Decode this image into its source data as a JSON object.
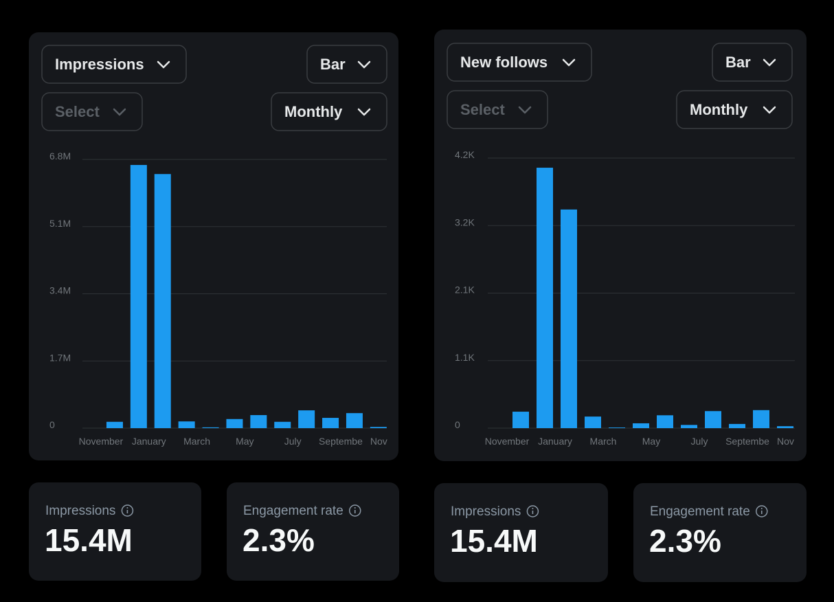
{
  "chart_data": [
    {
      "type": "bar",
      "categories": [
        "November",
        null,
        "January",
        null,
        "March",
        null,
        "May",
        null,
        "July",
        null,
        "Septembe",
        "Nov"
      ],
      "values": [
        160000,
        6660000,
        6430000,
        170000,
        20000,
        230000,
        330000,
        160000,
        450000,
        260000,
        380000,
        30000
      ],
      "color": "#1d9bf0",
      "ylim": [
        0,
        6800000
      ],
      "yticks": [
        0,
        {
          "value": 1700000,
          "label": "1.7M"
        },
        {
          "value": 3400000,
          "label": "3.4M"
        },
        {
          "value": 5100000,
          "label": "5.1M"
        },
        {
          "value": 6800000,
          "label": "6.8M"
        }
      ],
      "grid": true
    },
    {
      "type": "bar",
      "categories": [
        "November",
        null,
        "January",
        null,
        "March",
        null,
        "May",
        null,
        "July",
        null,
        "Septembe",
        "Nov"
      ],
      "values": [
        256,
        4050,
        3400,
        180,
        10,
        75,
        200,
        50,
        265,
        65,
        280,
        30
      ],
      "color": "#1d9bf0",
      "ylim": [
        0,
        4200
      ],
      "yticks": [
        0,
        {
          "value": 1050,
          "label": "1.1K"
        },
        {
          "value": 2100,
          "label": "2.1K"
        },
        {
          "value": 3150,
          "label": "3.2K"
        },
        {
          "value": 4200,
          "label": "4.2K"
        }
      ],
      "grid": true
    }
  ],
  "panels": [
    {
      "metric": "Impressions",
      "chart_type": "Bar",
      "compare": "Select",
      "interval": "Monthly"
    },
    {
      "metric": "New follows",
      "chart_type": "Bar",
      "compare": "Select",
      "interval": "Monthly"
    }
  ],
  "stats": [
    {
      "label": "Impressions",
      "value": "15.4M"
    },
    {
      "label": "Engagement rate",
      "value": "2.3%"
    },
    {
      "label": "Impressions",
      "value": "15.4M"
    },
    {
      "label": "Engagement rate",
      "value": "2.3%"
    }
  ]
}
